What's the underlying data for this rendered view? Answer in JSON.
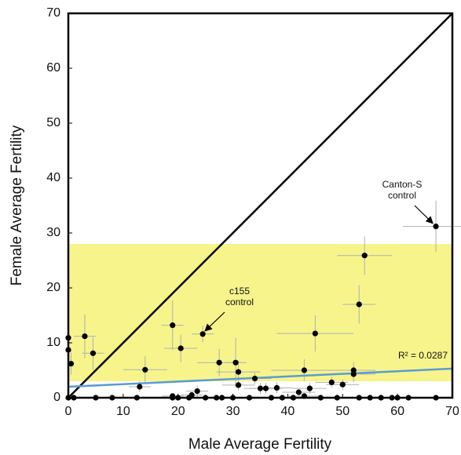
{
  "chart_data": {
    "type": "scatter",
    "xlabel": "Male Average Fertility",
    "ylabel": "Female Average Fertility",
    "xlim": [
      0,
      70
    ],
    "ylim": [
      0,
      70
    ],
    "xticks": [
      0,
      10,
      20,
      30,
      40,
      50,
      60,
      70
    ],
    "yticks": [
      0,
      10,
      20,
      30,
      40,
      50,
      60,
      70
    ],
    "color": "#000000",
    "errorbar_color": "#b0b0b0",
    "x": [
      67,
      54,
      53,
      45,
      24.5,
      19,
      20.5,
      3,
      4.5,
      0,
      0,
      0.5,
      14,
      27.5,
      30.5,
      31,
      43,
      52,
      52,
      50,
      48,
      34,
      35,
      36,
      38,
      31,
      13,
      23.5,
      22.5,
      19,
      42,
      44,
      43,
      0,
      1,
      5,
      8,
      12.5,
      19,
      20,
      22,
      25,
      27,
      28,
      30,
      33,
      37,
      39,
      41,
      46,
      49,
      53,
      55,
      57,
      59,
      60,
      62,
      67
    ],
    "y": [
      31.2,
      25.9,
      17,
      11.7,
      11.6,
      13.2,
      9,
      11.2,
      8.1,
      10.9,
      8.7,
      6.2,
      5.1,
      6.4,
      6.4,
      4.7,
      5,
      5,
      4.3,
      2.4,
      2.8,
      3.5,
      1.7,
      1.7,
      1.8,
      2.3,
      2,
      1.2,
      0.5,
      0.3,
      1,
      1.7,
      0.3,
      0,
      0,
      0,
      0,
      0,
      0,
      0,
      0,
      0,
      0,
      0,
      0,
      0,
      0,
      0,
      0,
      0,
      0,
      0,
      0,
      0,
      0,
      0,
      0,
      0
    ],
    "xerr": [
      6,
      5,
      3,
      7,
      2,
      2,
      3,
      2,
      2,
      0.5,
      0.5,
      0.5,
      4,
      4,
      2,
      4,
      6,
      4,
      4,
      3,
      3,
      3,
      3,
      3,
      3,
      3,
      2,
      2,
      2,
      2,
      3,
      3,
      3,
      0.5,
      1,
      1,
      2,
      2,
      2,
      2,
      2,
      2,
      2,
      2,
      2,
      2,
      2,
      2,
      2,
      2,
      2,
      2,
      2,
      2,
      2,
      2,
      2,
      2
    ],
    "yerr": [
      4.7,
      3.5,
      3.5,
      3.3,
      1.5,
      4.5,
      2.5,
      4,
      3,
      2,
      2,
      2,
      2.5,
      2.5,
      4.5,
      2,
      2,
      1.5,
      1.5,
      1,
      1,
      1,
      1,
      1,
      1,
      1,
      1,
      1,
      0.5,
      0.3,
      0.5,
      1,
      0.3,
      0,
      0,
      0,
      0,
      0,
      0,
      0,
      0,
      0,
      0,
      0,
      0,
      0,
      0,
      0,
      0,
      0,
      0,
      0,
      0,
      0,
      0,
      0,
      0,
      0
    ],
    "band": {
      "y": [
        3,
        28
      ],
      "color": "#f7f48c"
    },
    "trendline": {
      "x": [
        0,
        70
      ],
      "y": [
        2,
        5.3
      ],
      "color": "#5b9bd5",
      "label": "R² = 0.0287"
    },
    "annotations": [
      {
        "text": [
          "Canton-S",
          "control"
        ]
      },
      {
        "text": [
          "c155",
          "control"
        ]
      }
    ]
  }
}
